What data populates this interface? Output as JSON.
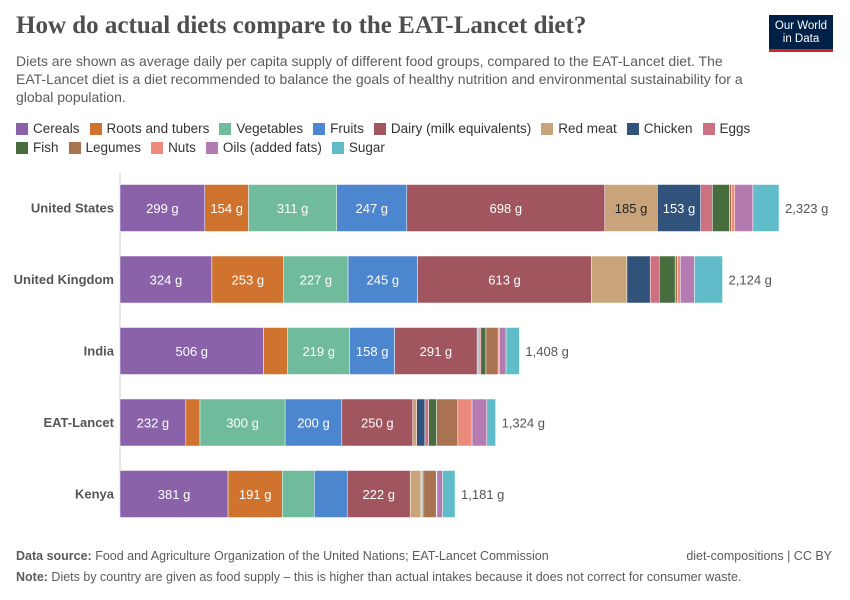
{
  "title": "How do actual diets compare to the EAT-Lancet diet?",
  "subtitle": "Diets are shown as average daily per capita supply of different food groups, compared to the EAT-Lancet diet. The EAT-Lancet diet is a diet recommended to balance the goals of healthy nutrition and environmental sustainability for a global population.",
  "logo": {
    "line1": "Our World",
    "line2": "in Data"
  },
  "footer": {
    "source_label": "Data source:",
    "source": " Food and Agriculture Organization of the United Nations; EAT-Lancet Commission",
    "note_label": "Note:",
    "note": " Diets by country are given as food supply – this is higher than actual intakes because it does not correct for consumer waste.",
    "right": "diet-compositions | CC BY"
  },
  "chart_data": {
    "type": "bar",
    "orientation": "horizontal",
    "stacked": true,
    "unit": "g",
    "categories": [
      "United States",
      "United Kingdom",
      "India",
      "EAT-Lancet",
      "Kenya"
    ],
    "totals": [
      "2,323 g",
      "2,124 g",
      "1,408 g",
      "1,324 g",
      "1,181 g"
    ],
    "legend_placement": "top",
    "series": [
      {
        "name": "Cereals",
        "color": "#8a62aa",
        "values": [
          299,
          324,
          506,
          232,
          381
        ]
      },
      {
        "name": "Roots and tubers",
        "color": "#d0732f",
        "values": [
          154,
          253,
          85,
          50,
          191
        ]
      },
      {
        "name": "Vegetables",
        "color": "#6fbb9c",
        "values": [
          311,
          227,
          219,
          300,
          113
        ]
      },
      {
        "name": "Fruits",
        "color": "#4c86cf",
        "values": [
          247,
          245,
          158,
          200,
          116
        ]
      },
      {
        "name": "Dairy (milk equivalents)",
        "color": "#a0555f",
        "values": [
          698,
          613,
          291,
          250,
          222
        ]
      },
      {
        "name": "Red meat",
        "color": "#c9a47b",
        "values": [
          185,
          125,
          4,
          14,
          38
        ]
      },
      {
        "name": "Chicken",
        "color": "#30527b",
        "values": [
          153,
          82,
          3,
          29,
          2
        ]
      },
      {
        "name": "Eggs",
        "color": "#cd7080",
        "values": [
          41,
          32,
          6,
          13,
          3
        ]
      },
      {
        "name": "Fish",
        "color": "#476c3e",
        "values": [
          60,
          56,
          18,
          28,
          5
        ]
      },
      {
        "name": "Legumes",
        "color": "#a97352",
        "values": [
          7,
          8,
          43,
          75,
          44
        ]
      },
      {
        "name": "Nuts",
        "color": "#ea8b7b",
        "values": [
          12,
          10,
          4,
          50,
          2
        ]
      },
      {
        "name": "Oils (added fats)",
        "color": "#b47bb0",
        "values": [
          64,
          50,
          24,
          52,
          20
        ]
      },
      {
        "name": "Sugar",
        "color": "#5fbcc8",
        "values": [
          92,
          99,
          47,
          31,
          44
        ]
      }
    ]
  }
}
